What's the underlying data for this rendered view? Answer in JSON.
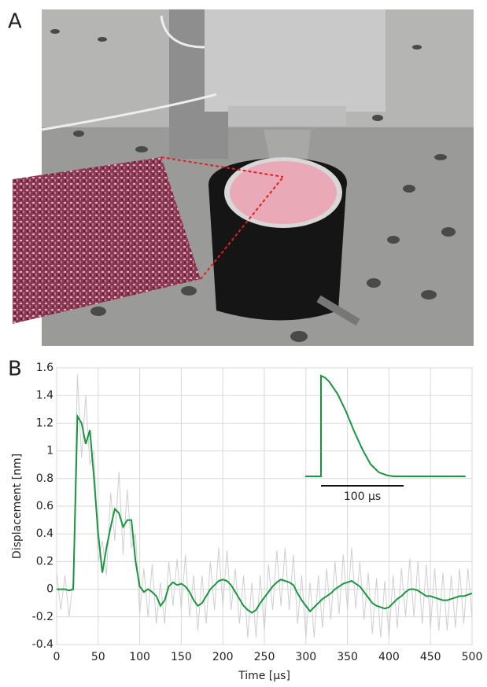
{
  "figure": {
    "panel_a_label": "A"
  },
  "chart_data": {
    "type": "line",
    "panel_label": "B",
    "xlabel": "Time [μs]",
    "ylabel": "Displacement [nm]",
    "x": [
      0,
      5,
      10,
      15,
      20,
      25,
      30,
      35,
      40,
      45,
      50,
      55,
      60,
      65,
      70,
      75,
      80,
      85,
      90,
      95,
      100,
      105,
      110,
      115,
      120,
      125,
      130,
      135,
      140,
      145,
      150,
      155,
      160,
      165,
      170,
      175,
      180,
      185,
      190,
      195,
      200,
      205,
      210,
      215,
      220,
      225,
      230,
      235,
      240,
      245,
      250,
      255,
      260,
      265,
      270,
      275,
      280,
      285,
      290,
      295,
      300,
      305,
      310,
      315,
      320,
      325,
      330,
      335,
      340,
      345,
      350,
      355,
      360,
      365,
      370,
      375,
      380,
      385,
      390,
      395,
      400,
      405,
      410,
      415,
      420,
      425,
      430,
      435,
      440,
      445,
      450,
      455,
      460,
      465,
      470,
      475,
      480,
      485,
      490,
      495,
      500
    ],
    "series": [
      {
        "color": "#cfcfcf",
        "values": [
          0.12,
          -0.15,
          0.1,
          -0.2,
          0.08,
          1.55,
          0.95,
          1.4,
          0.9,
          1.0,
          0.2,
          0.35,
          0.1,
          0.7,
          0.35,
          0.85,
          0.25,
          0.72,
          0.3,
          0.4,
          -0.18,
          0.15,
          -0.2,
          0.18,
          -0.25,
          0.05,
          -0.25,
          0.2,
          -0.12,
          0.22,
          -0.15,
          0.25,
          -0.2,
          0.1,
          -0.3,
          0.1,
          -0.25,
          0.2,
          -0.15,
          0.3,
          -0.12,
          0.28,
          -0.15,
          0.15,
          -0.25,
          0.1,
          -0.35,
          0.05,
          -0.35,
          0.1,
          -0.3,
          0.18,
          -0.15,
          0.28,
          -0.12,
          0.3,
          -0.15,
          0.25,
          -0.25,
          0.1,
          -0.35,
          0.05,
          -0.35,
          0.1,
          -0.28,
          0.15,
          -0.22,
          0.2,
          -0.18,
          0.25,
          -0.15,
          0.3,
          -0.14,
          0.2,
          -0.22,
          0.12,
          -0.32,
          0.08,
          -0.35,
          0.06,
          -0.35,
          0.1,
          -0.28,
          0.15,
          -0.2,
          0.22,
          -0.2,
          0.2,
          -0.25,
          0.18,
          -0.28,
          0.15,
          -0.3,
          0.12,
          -0.3,
          0.1,
          -0.28,
          0.15,
          -0.25,
          0.15,
          -0.2
        ]
      },
      {
        "color": "#1a9641",
        "values": [
          0,
          0,
          0,
          -0.01,
          0,
          1.25,
          1.2,
          1.05,
          1.15,
          0.8,
          0.4,
          0.12,
          0.3,
          0.45,
          0.58,
          0.55,
          0.45,
          0.5,
          0.5,
          0.2,
          0.02,
          -0.02,
          0,
          -0.02,
          -0.05,
          -0.12,
          -0.08,
          0.02,
          0.05,
          0.03,
          0.04,
          0.02,
          -0.02,
          -0.08,
          -0.12,
          -0.1,
          -0.05,
          0,
          0.03,
          0.06,
          0.07,
          0.06,
          0.03,
          -0.02,
          -0.07,
          -0.12,
          -0.15,
          -0.17,
          -0.15,
          -0.1,
          -0.06,
          -0.02,
          0.02,
          0.05,
          0.07,
          0.06,
          0.05,
          0.03,
          -0.03,
          -0.08,
          -0.12,
          -0.16,
          -0.13,
          -0.1,
          -0.07,
          -0.05,
          -0.03,
          0,
          0.02,
          0.04,
          0.05,
          0.06,
          0.04,
          0.02,
          -0.02,
          -0.06,
          -0.1,
          -0.12,
          -0.13,
          -0.14,
          -0.13,
          -0.1,
          -0.07,
          -0.05,
          -0.02,
          0,
          0,
          -0.01,
          -0.03,
          -0.05,
          -0.05,
          -0.06,
          -0.07,
          -0.08,
          -0.08,
          -0.07,
          -0.06,
          -0.05,
          -0.05,
          -0.04,
          -0.03
        ]
      }
    ],
    "xlim": [
      0,
      500
    ],
    "ylim": [
      -0.4,
      1.6
    ],
    "xticks": [
      0,
      50,
      100,
      150,
      200,
      250,
      300,
      350,
      400,
      450,
      500
    ],
    "yticks": [
      -0.4,
      -0.2,
      0,
      0.2,
      0.4,
      0.6,
      0.8,
      1,
      1.2,
      1.4,
      1.6
    ],
    "grid": true,
    "inset": {
      "color": "#1a9641",
      "x": [
        -19,
        0,
        0,
        5,
        10,
        20,
        30,
        40,
        50,
        60,
        70,
        80,
        88,
        175
      ],
      "values": [
        0,
        0,
        1,
        0.98,
        0.94,
        0.82,
        0.65,
        0.45,
        0.27,
        0.12,
        0.04,
        0.01,
        0,
        0
      ],
      "scale_bar": [
        0,
        100
      ],
      "scale_label": "100 μs"
    }
  }
}
